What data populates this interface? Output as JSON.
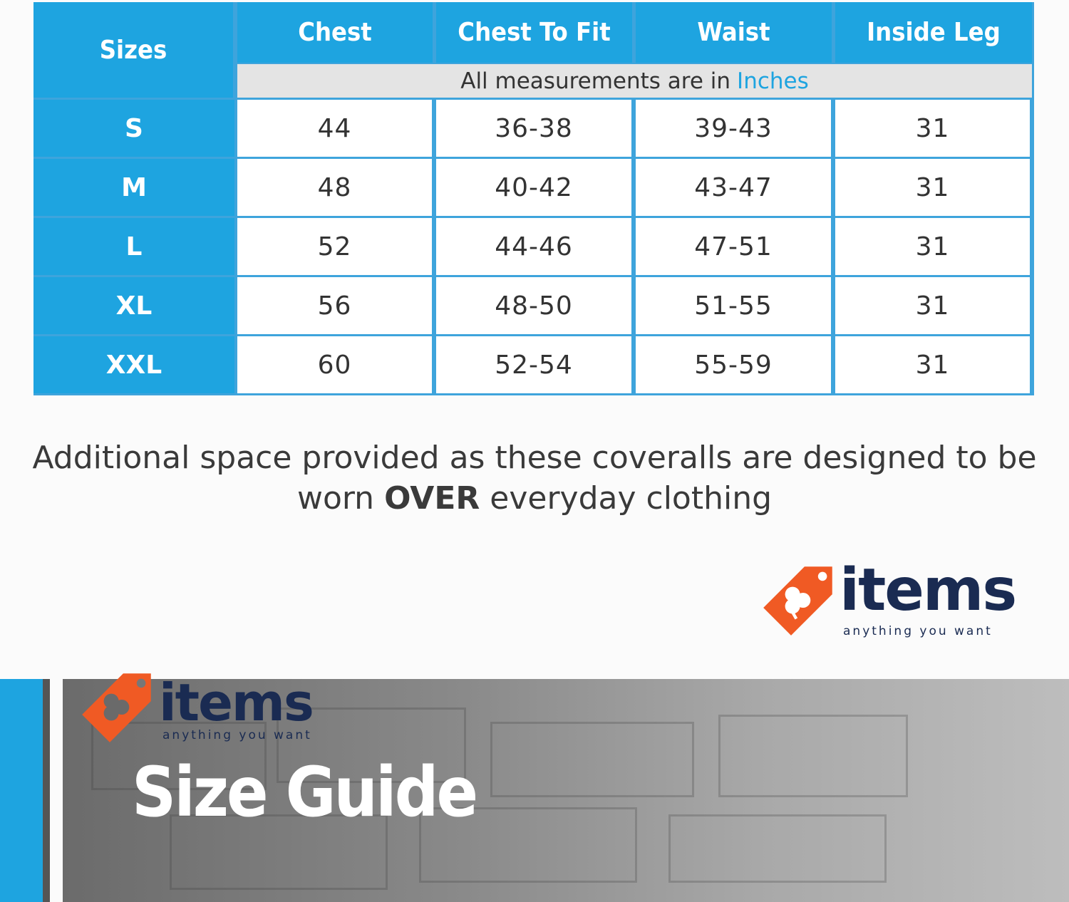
{
  "table": {
    "corner_header": "Sizes",
    "columns": [
      "Chest",
      "Chest To Fit",
      "Waist",
      "Inside Leg"
    ],
    "unit_note": "All measurements are in",
    "unit_highlight": "Inches",
    "rows": [
      {
        "size": "S",
        "values": [
          "44",
          "36-38",
          "39-43",
          "31"
        ]
      },
      {
        "size": "M",
        "values": [
          "48",
          "40-42",
          "43-47",
          "31"
        ]
      },
      {
        "size": "L",
        "values": [
          "52",
          "44-46",
          "47-51",
          "31"
        ]
      },
      {
        "size": "XL",
        "values": [
          "56",
          "48-50",
          "51-55",
          "31"
        ]
      },
      {
        "size": "XXL",
        "values": [
          "60",
          "52-54",
          "55-59",
          "31"
        ]
      }
    ]
  },
  "note": {
    "line1": "Additional space provided as these coveralls are designed to be",
    "line2_before": "worn",
    "line2_bold": "OVER",
    "line2_after": "everyday clothing"
  },
  "logo": {
    "wordmark": "items",
    "tagline": "anything you want"
  },
  "banner": {
    "title": "Size Guide"
  },
  "colors": {
    "accent": "#1ea4e0",
    "logo_orange": "#f05a24",
    "logo_navy": "#1a2b52",
    "subheader": "#e4e4e4"
  }
}
